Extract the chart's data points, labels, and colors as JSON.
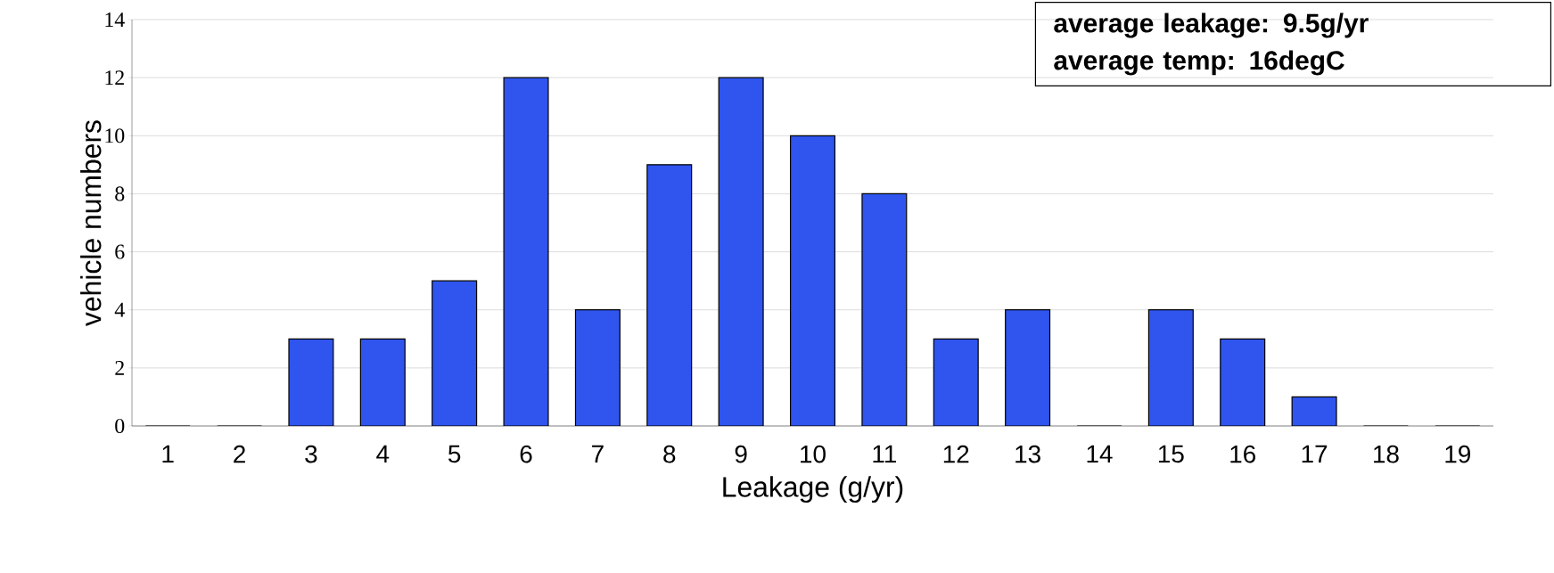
{
  "chart_data": {
    "type": "bar",
    "xlabel": "Leakage (g/yr)",
    "ylabel": "vehicle numbers",
    "categories": [
      "1",
      "2",
      "3",
      "4",
      "5",
      "6",
      "7",
      "8",
      "9",
      "10",
      "11",
      "12",
      "13",
      "14",
      "15",
      "16",
      "17",
      "18",
      "19"
    ],
    "values": [
      0,
      0,
      3,
      3,
      5,
      12,
      4,
      9,
      12,
      10,
      8,
      3,
      4,
      0,
      4,
      3,
      1,
      0,
      0
    ],
    "color": "#2f55ee",
    "ylim": [
      0,
      14
    ],
    "yticks": [
      0,
      2,
      4,
      6,
      8,
      10,
      12,
      14
    ],
    "grid": "y",
    "annotations": [
      "**average leakage: 9.5g/yr**",
      "**average temp: 16degC**"
    ]
  }
}
